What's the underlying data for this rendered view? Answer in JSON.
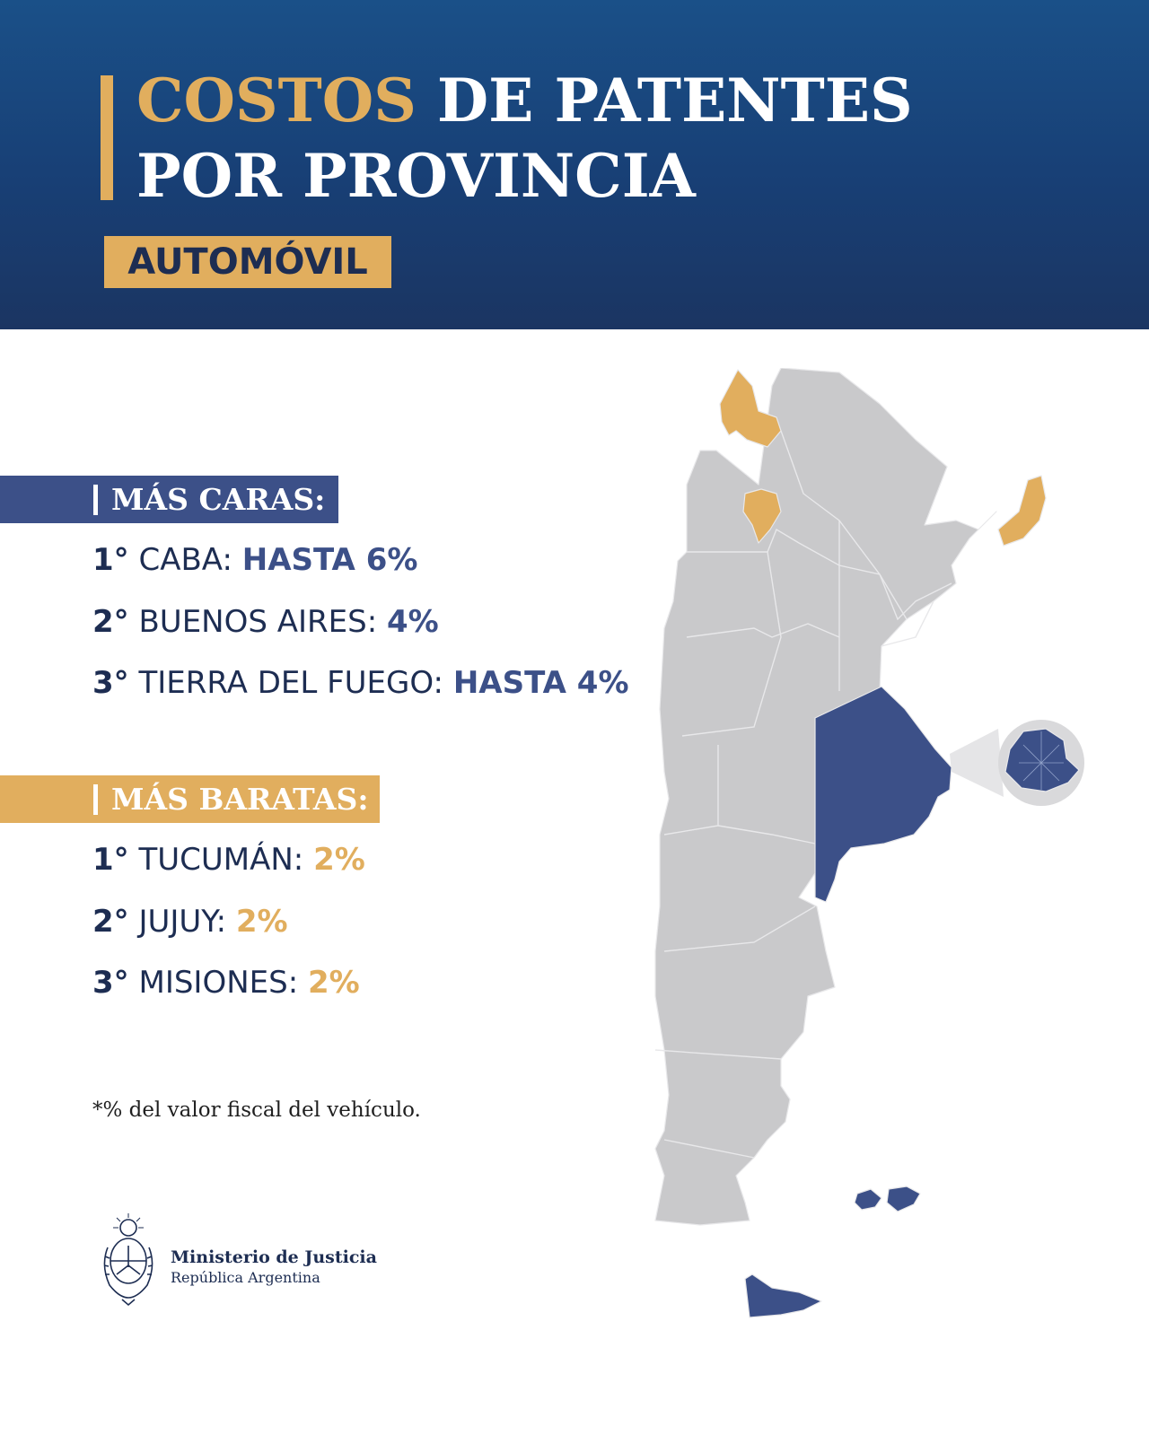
{
  "header": {
    "title_highlight": "COSTOS",
    "title_rest_line1": " DE PATENTES",
    "title_line2": "POR PROVINCIA",
    "badge": "AUTOMÓVIL"
  },
  "most_expensive": {
    "label": "MÁS CARAS:",
    "items": [
      {
        "rank": "1°",
        "province": "CABA:",
        "value": "HASTA 6%"
      },
      {
        "rank": "2°",
        "province": "BUENOS AIRES:",
        "value": "4%"
      },
      {
        "rank": "3°",
        "province": "TIERRA DEL FUEGO:",
        "value": "HASTA 4%"
      }
    ]
  },
  "cheapest": {
    "label": "MÁS BARATAS:",
    "items": [
      {
        "rank": "1°",
        "province": "TUCUMÁN:",
        "value": "2%"
      },
      {
        "rank": "2°",
        "province": "JUJUY:",
        "value": "2%"
      },
      {
        "rank": "3°",
        "province": "MISIONES:",
        "value": "2%"
      }
    ]
  },
  "footnote": "*% del valor fiscal del vehículo.",
  "logo": {
    "line1": "Ministerio de Justicia",
    "line2": "República Argentina"
  },
  "map": {
    "colors": {
      "base": "#c9c9cb",
      "expensive": "#3c5088",
      "cheap": "#e1ae5e",
      "border": "#e8e8ea"
    },
    "expensive_provinces": [
      "Buenos Aires",
      "CABA",
      "Tierra del Fuego"
    ],
    "cheap_provinces": [
      "Jujuy",
      "Tucumán",
      "Misiones"
    ]
  }
}
